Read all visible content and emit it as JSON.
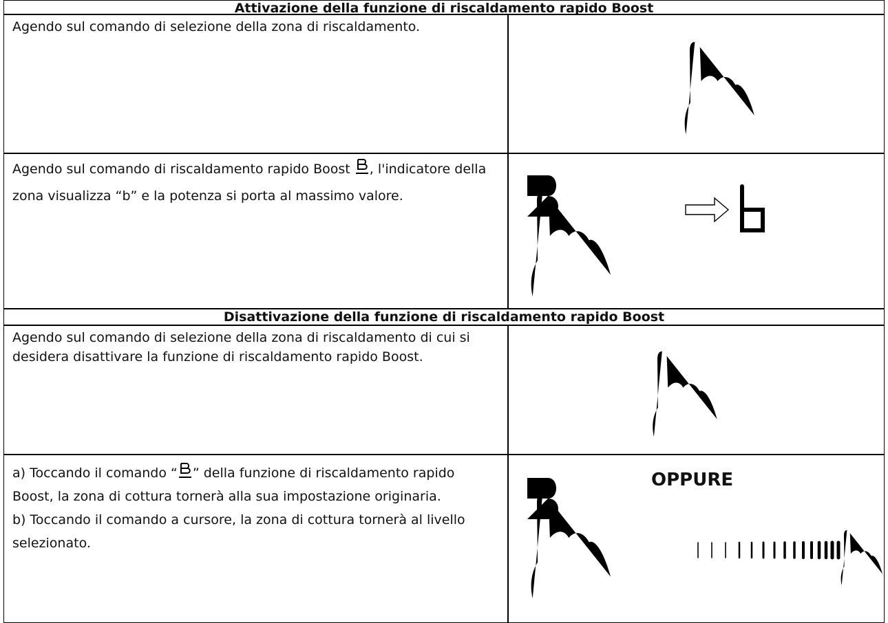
{
  "sections": [
    {
      "title": "Attivazione della funzione di riscaldamento rapido Boost",
      "rows": [
        {
          "text": [
            "Agendo sul comando di selezione della zona di riscaldamento."
          ]
        },
        {
          "text": [
            "Agendo sul comando di riscaldamento rapido Boost ",
            ", l'indicatore della zona visualizza “b” e la potenza si porta al massimo valore."
          ]
        }
      ]
    },
    {
      "title": "Disattivazione della funzione di riscaldamento rapido Boost",
      "rows": [
        {
          "text": [
            "Agendo sul comando di selezione della zona di riscaldamento di cui si desidera disattivare la funzione di riscaldamento rapido Boost."
          ]
        },
        {
          "text": [
            "a) Toccando il comando “",
            "” della funzione di riscaldamento rapido Boost, la zona di cottura tornerà alla sua impostazione originaria.",
            "b) Toccando il comando a cursore, la zona di cottura tornerà al livello selezionato."
          ],
          "label": "OPPURE"
        }
      ]
    }
  ]
}
